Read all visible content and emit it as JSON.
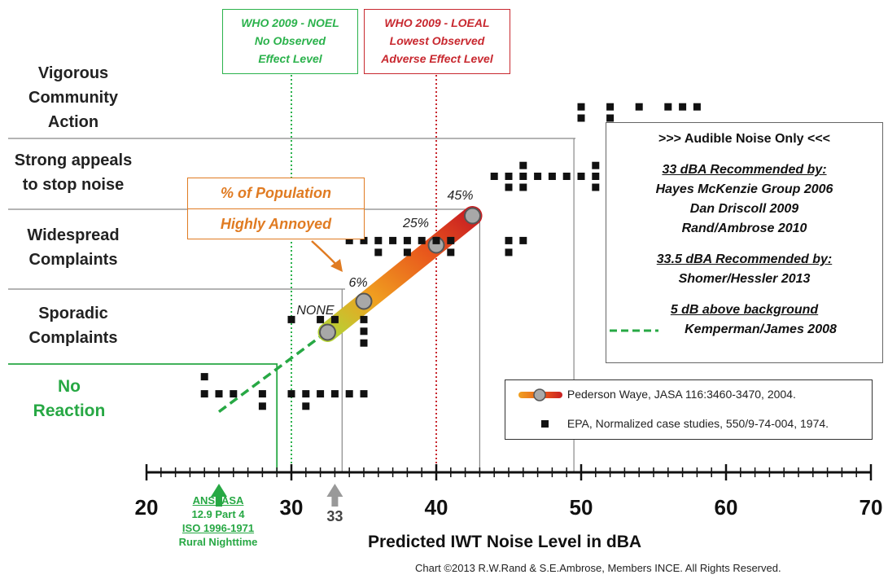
{
  "chart_data": {
    "type": "scatter",
    "xlabel": "Predicted IWT Noise Level in dBA",
    "xlim": [
      20,
      70
    ],
    "x_ticks": [
      "20",
      "30",
      "40",
      "50",
      "60",
      "70"
    ],
    "categories": [
      {
        "label": "Vigorous\nCommunity\nAction",
        "level": 5
      },
      {
        "label": "Strong appeals\nto stop noise",
        "level": 4
      },
      {
        "label": "Widespread\nComplaints",
        "level": 3
      },
      {
        "label": "Sporadic\nComplaints",
        "level": 2
      },
      {
        "label": "No\nReaction",
        "level": 1
      }
    ],
    "series": [
      {
        "name": "Pederson Waye, JASA 116:3460-3470, 2004.",
        "style": "gradient-band",
        "points": [
          {
            "x": 32.5,
            "label": "NONE"
          },
          {
            "x": 35,
            "label": "6%"
          },
          {
            "x": 40,
            "label": "25%"
          },
          {
            "x": 42.5,
            "label": "45%"
          }
        ]
      },
      {
        "name": "EPA, Normalized case studies, 550/9-74-004, 1974.",
        "style": "square-markers",
        "points": [
          {
            "x": 24,
            "y": 1.1
          },
          {
            "x": 24,
            "y": 1.35
          },
          {
            "x": 25,
            "y": 1.1
          },
          {
            "x": 26,
            "y": 1.1
          },
          {
            "x": 28,
            "y": 1.1
          },
          {
            "x": 28,
            "y": 0.95
          },
          {
            "x": 30,
            "y": 1.1
          },
          {
            "x": 31,
            "y": 1.1
          },
          {
            "x": 31,
            "y": 0.95
          },
          {
            "x": 32,
            "y": 1.1
          },
          {
            "x": 33,
            "y": 1.1
          },
          {
            "x": 34,
            "y": 1.1
          },
          {
            "x": 35,
            "y": 1.1
          },
          {
            "x": 30,
            "y": 2.1
          },
          {
            "x": 32,
            "y": 2.1
          },
          {
            "x": 33,
            "y": 2.1
          },
          {
            "x": 35,
            "y": 2.1
          },
          {
            "x": 35,
            "y": 1.95
          },
          {
            "x": 35,
            "y": 1.8
          },
          {
            "x": 34,
            "y": 3.1
          },
          {
            "x": 35,
            "y": 3.1
          },
          {
            "x": 36,
            "y": 3.1
          },
          {
            "x": 36,
            "y": 2.95
          },
          {
            "x": 37,
            "y": 3.1
          },
          {
            "x": 38,
            "y": 3.1
          },
          {
            "x": 38,
            "y": 2.95
          },
          {
            "x": 39,
            "y": 3.1
          },
          {
            "x": 40,
            "y": 3.1
          },
          {
            "x": 41,
            "y": 3.1
          },
          {
            "x": 41,
            "y": 2.95
          },
          {
            "x": 45,
            "y": 3.1
          },
          {
            "x": 45,
            "y": 2.95
          },
          {
            "x": 46,
            "y": 3.1
          },
          {
            "x": 44,
            "y": 3.95
          },
          {
            "x": 45,
            "y": 3.95
          },
          {
            "x": 45,
            "y": 3.8
          },
          {
            "x": 46,
            "y": 3.95
          },
          {
            "x": 46,
            "y": 4.1
          },
          {
            "x": 46,
            "y": 3.8
          },
          {
            "x": 47,
            "y": 3.95
          },
          {
            "x": 48,
            "y": 3.95
          },
          {
            "x": 49,
            "y": 3.95
          },
          {
            "x": 50,
            "y": 3.95
          },
          {
            "x": 51,
            "y": 3.95
          },
          {
            "x": 51,
            "y": 4.1
          },
          {
            "x": 51,
            "y": 3.8
          },
          {
            "x": 50,
            "y": 4.9
          },
          {
            "x": 50,
            "y": 4.75
          },
          {
            "x": 52,
            "y": 4.9
          },
          {
            "x": 52,
            "y": 4.75
          },
          {
            "x": 54,
            "y": 4.9
          },
          {
            "x": 56,
            "y": 4.9
          },
          {
            "x": 57,
            "y": 4.9
          },
          {
            "x": 58,
            "y": 4.9
          }
        ]
      },
      {
        "name": "Kemperman/James 2008",
        "style": "green-dashed",
        "points": [
          {
            "x": 25,
            "y": 0.9
          },
          {
            "x": 32.5,
            "y": 1.95
          }
        ]
      }
    ],
    "reference_lines": [
      {
        "x": 30,
        "label": "WHO 2009 - NOEL",
        "color": "#2bb24c"
      },
      {
        "x": 40,
        "label": "WHO 2009 - LOEAL",
        "color": "#c8282f"
      }
    ],
    "markers": [
      {
        "x": 25,
        "color": "#27a844"
      },
      {
        "x": 33,
        "label": "33",
        "color": "#999999"
      }
    ],
    "grid": false,
    "legend_position": "bottom-right"
  },
  "who_noel": {
    "line1": "WHO 2009 - NOEL",
    "line2": "No Observed",
    "line3": "Effect Level"
  },
  "who_loeal": {
    "line1": "WHO 2009 - LOEAL",
    "line2": "Lowest Observed",
    "line3": "Adverse Effect Level"
  },
  "recommendations": {
    "title": ">>> Audible Noise Only <<<",
    "group1_heading": "33 dBA Recommended by:",
    "group1_items": [
      "Hayes McKenzie Group 2006",
      "Dan Driscoll  2009",
      "Rand/Ambrose 2010"
    ],
    "group2_heading": "33.5 dBA Recommended  by:",
    "group2_items": [
      "Shomer/Hessler  2013"
    ],
    "group3_heading": "5 dB above background",
    "group3_items": [
      "Kemperman/James  2008"
    ]
  },
  "pct_box": {
    "line1": "% of Population",
    "line2": "Highly Annoyed"
  },
  "ansi_annotation": {
    "line1": "ANSI-ASA",
    "line2": "12.9  Part 4",
    "line3": "ISO 1996-1971",
    "line4": "Rural Nighttime"
  },
  "copyright": "Chart ©2013  R.W.Rand & S.E.Ambrose, Members INCE.  All Rights Reserved.",
  "colors": {
    "green": "#27a844",
    "red": "#c8282f",
    "orange": "#e07b22",
    "axis": "#111111"
  }
}
